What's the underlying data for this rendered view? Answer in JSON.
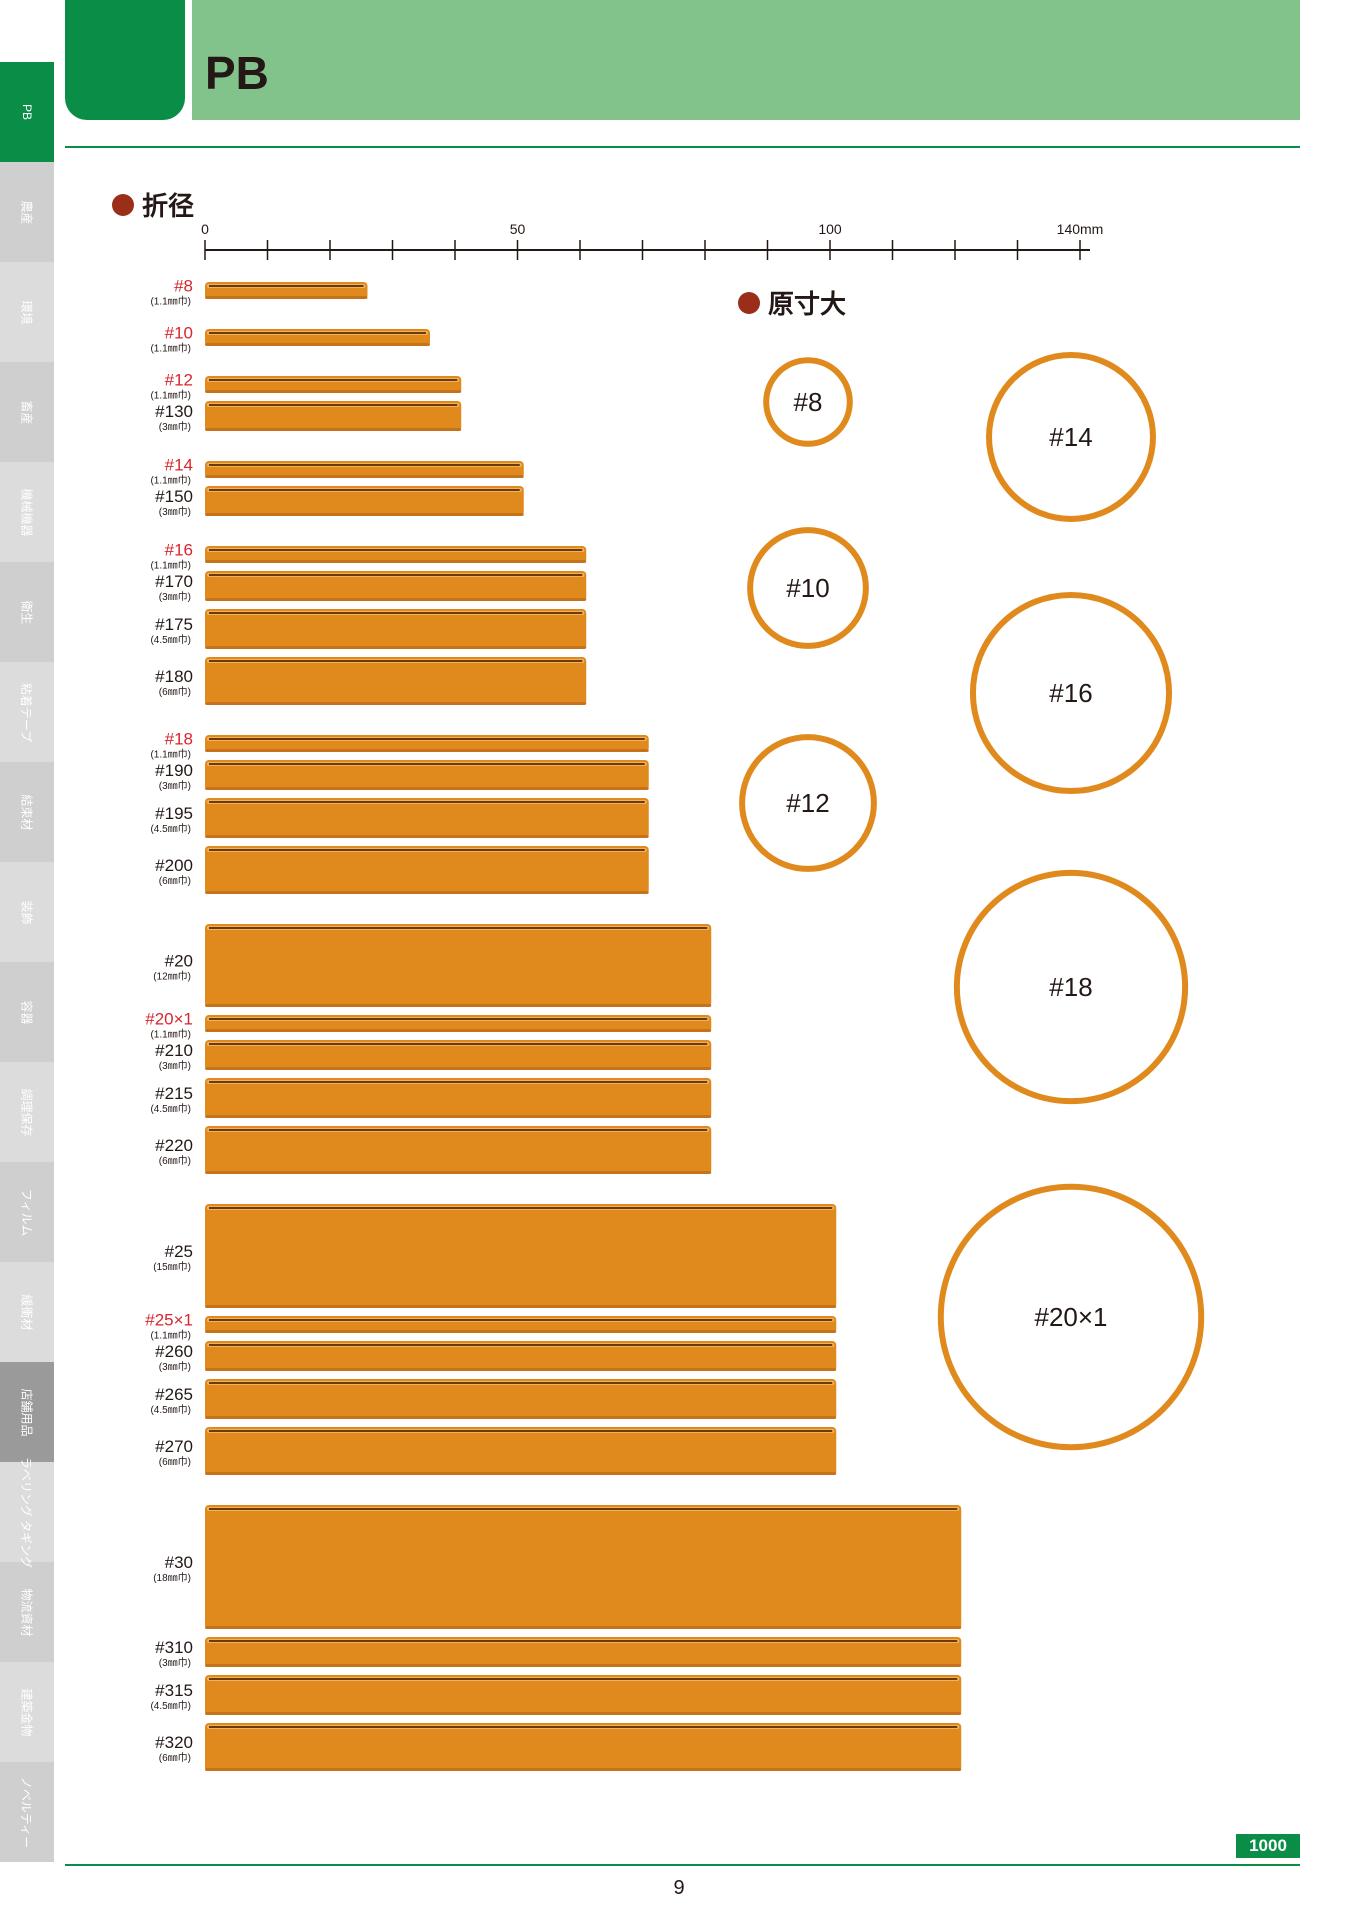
{
  "header": {
    "title": "PB"
  },
  "sidebar": {
    "items": [
      {
        "label": "PB",
        "style": "active"
      },
      {
        "label": "農産",
        "style": "light"
      },
      {
        "label": "環境",
        "style": "lighter"
      },
      {
        "label": "畜産",
        "style": "light"
      },
      {
        "label": "機械機器",
        "style": "lighter"
      },
      {
        "label": "衛生",
        "style": "light"
      },
      {
        "label": "粘着テープ",
        "style": "lighter"
      },
      {
        "label": "結束材",
        "style": "light"
      },
      {
        "label": "装飾",
        "style": "lighter"
      },
      {
        "label": "容器",
        "style": "light"
      },
      {
        "label": "調理保存",
        "style": "lighter"
      },
      {
        "label": "フィルム",
        "style": "light"
      },
      {
        "label": "緩衝材",
        "style": "lighter"
      },
      {
        "label": "店舗用品",
        "style": "dark"
      },
      {
        "label": "ラベリング タギング",
        "style": "lighter"
      },
      {
        "label": "物流資材",
        "style": "light"
      },
      {
        "label": "建築金物",
        "style": "lighter"
      },
      {
        "label": "ノベルティー",
        "style": "light"
      }
    ]
  },
  "sections": {
    "fold": "折径",
    "actual": "原寸大"
  },
  "colors": {
    "band": "#e08a1e",
    "band_highlight": "#f2b25c",
    "band_dark": "#6b3a0e",
    "label_red": "#d7262e",
    "ring": "#e08a1e",
    "accent_green": "#0a8e47"
  },
  "chart_data": {
    "type": "bar",
    "axis": {
      "min": 0,
      "max": 140,
      "ticks": [
        "0",
        "50",
        "100",
        "140mm"
      ],
      "minor_step": 10
    },
    "bands": [
      {
        "name": "#8",
        "width_label": "(1.1㎜巾)",
        "fold_mm": 26,
        "width_mm": 1.1,
        "red": true
      },
      {
        "name": "#10",
        "width_label": "(1.1㎜巾)",
        "fold_mm": 36,
        "width_mm": 1.1,
        "red": true
      },
      {
        "name": "#12",
        "width_label": "(1.1㎜巾)",
        "fold_mm": 41,
        "width_mm": 1.1,
        "red": true
      },
      {
        "name": "#130",
        "width_label": "(3㎜巾)",
        "fold_mm": 41,
        "width_mm": 3,
        "red": false
      },
      {
        "name": "#14",
        "width_label": "(1.1㎜巾)",
        "fold_mm": 51,
        "width_mm": 1.1,
        "red": true
      },
      {
        "name": "#150",
        "width_label": "(3㎜巾)",
        "fold_mm": 51,
        "width_mm": 3,
        "red": false
      },
      {
        "name": "#16",
        "width_label": "(1.1㎜巾)",
        "fold_mm": 61,
        "width_mm": 1.1,
        "red": true
      },
      {
        "name": "#170",
        "width_label": "(3㎜巾)",
        "fold_mm": 61,
        "width_mm": 3,
        "red": false
      },
      {
        "name": "#175",
        "width_label": "(4.5㎜巾)",
        "fold_mm": 61,
        "width_mm": 4.5,
        "red": false
      },
      {
        "name": "#180",
        "width_label": "(6㎜巾)",
        "fold_mm": 61,
        "width_mm": 6,
        "red": false
      },
      {
        "name": "#18",
        "width_label": "(1.1㎜巾)",
        "fold_mm": 71,
        "width_mm": 1.1,
        "red": true
      },
      {
        "name": "#190",
        "width_label": "(3㎜巾)",
        "fold_mm": 71,
        "width_mm": 3,
        "red": false
      },
      {
        "name": "#195",
        "width_label": "(4.5㎜巾)",
        "fold_mm": 71,
        "width_mm": 4.5,
        "red": false
      },
      {
        "name": "#200",
        "width_label": "(6㎜巾)",
        "fold_mm": 71,
        "width_mm": 6,
        "red": false
      },
      {
        "name": "#20",
        "width_label": "(12㎜巾)",
        "fold_mm": 81,
        "width_mm": 12,
        "red": false
      },
      {
        "name": "#20×1",
        "width_label": "(1.1㎜巾)",
        "fold_mm": 81,
        "width_mm": 1.1,
        "red": true
      },
      {
        "name": "#210",
        "width_label": "(3㎜巾)",
        "fold_mm": 81,
        "width_mm": 3,
        "red": false
      },
      {
        "name": "#215",
        "width_label": "(4.5㎜巾)",
        "fold_mm": 81,
        "width_mm": 4.5,
        "red": false
      },
      {
        "name": "#220",
        "width_label": "(6㎜巾)",
        "fold_mm": 81,
        "width_mm": 6,
        "red": false
      },
      {
        "name": "#25",
        "width_label": "(15㎜巾)",
        "fold_mm": 101,
        "width_mm": 15,
        "red": false
      },
      {
        "name": "#25×1",
        "width_label": "(1.1㎜巾)",
        "fold_mm": 101,
        "width_mm": 1.1,
        "red": true
      },
      {
        "name": "#260",
        "width_label": "(3㎜巾)",
        "fold_mm": 101,
        "width_mm": 3,
        "red": false
      },
      {
        "name": "#265",
        "width_label": "(4.5㎜巾)",
        "fold_mm": 101,
        "width_mm": 4.5,
        "red": false
      },
      {
        "name": "#270",
        "width_label": "(6㎜巾)",
        "fold_mm": 101,
        "width_mm": 6,
        "red": false
      },
      {
        "name": "#30",
        "width_label": "(18㎜巾)",
        "fold_mm": 121,
        "width_mm": 18,
        "red": false
      },
      {
        "name": "#310",
        "width_label": "(3㎜巾)",
        "fold_mm": 121,
        "width_mm": 3,
        "red": false
      },
      {
        "name": "#315",
        "width_label": "(4.5㎜巾)",
        "fold_mm": 121,
        "width_mm": 4.5,
        "red": false
      },
      {
        "name": "#320",
        "width_label": "(6㎜巾)",
        "fold_mm": 121,
        "width_mm": 6,
        "red": false
      }
    ],
    "rings": [
      {
        "label": "#8",
        "fold_mm": 26
      },
      {
        "label": "#10",
        "fold_mm": 36
      },
      {
        "label": "#12",
        "fold_mm": 41
      },
      {
        "label": "#14",
        "fold_mm": 51
      },
      {
        "label": "#16",
        "fold_mm": 61
      },
      {
        "label": "#18",
        "fold_mm": 71
      },
      {
        "label": "#20×1",
        "fold_mm": 81
      }
    ]
  },
  "footer": {
    "page": "9",
    "code": "1000"
  }
}
